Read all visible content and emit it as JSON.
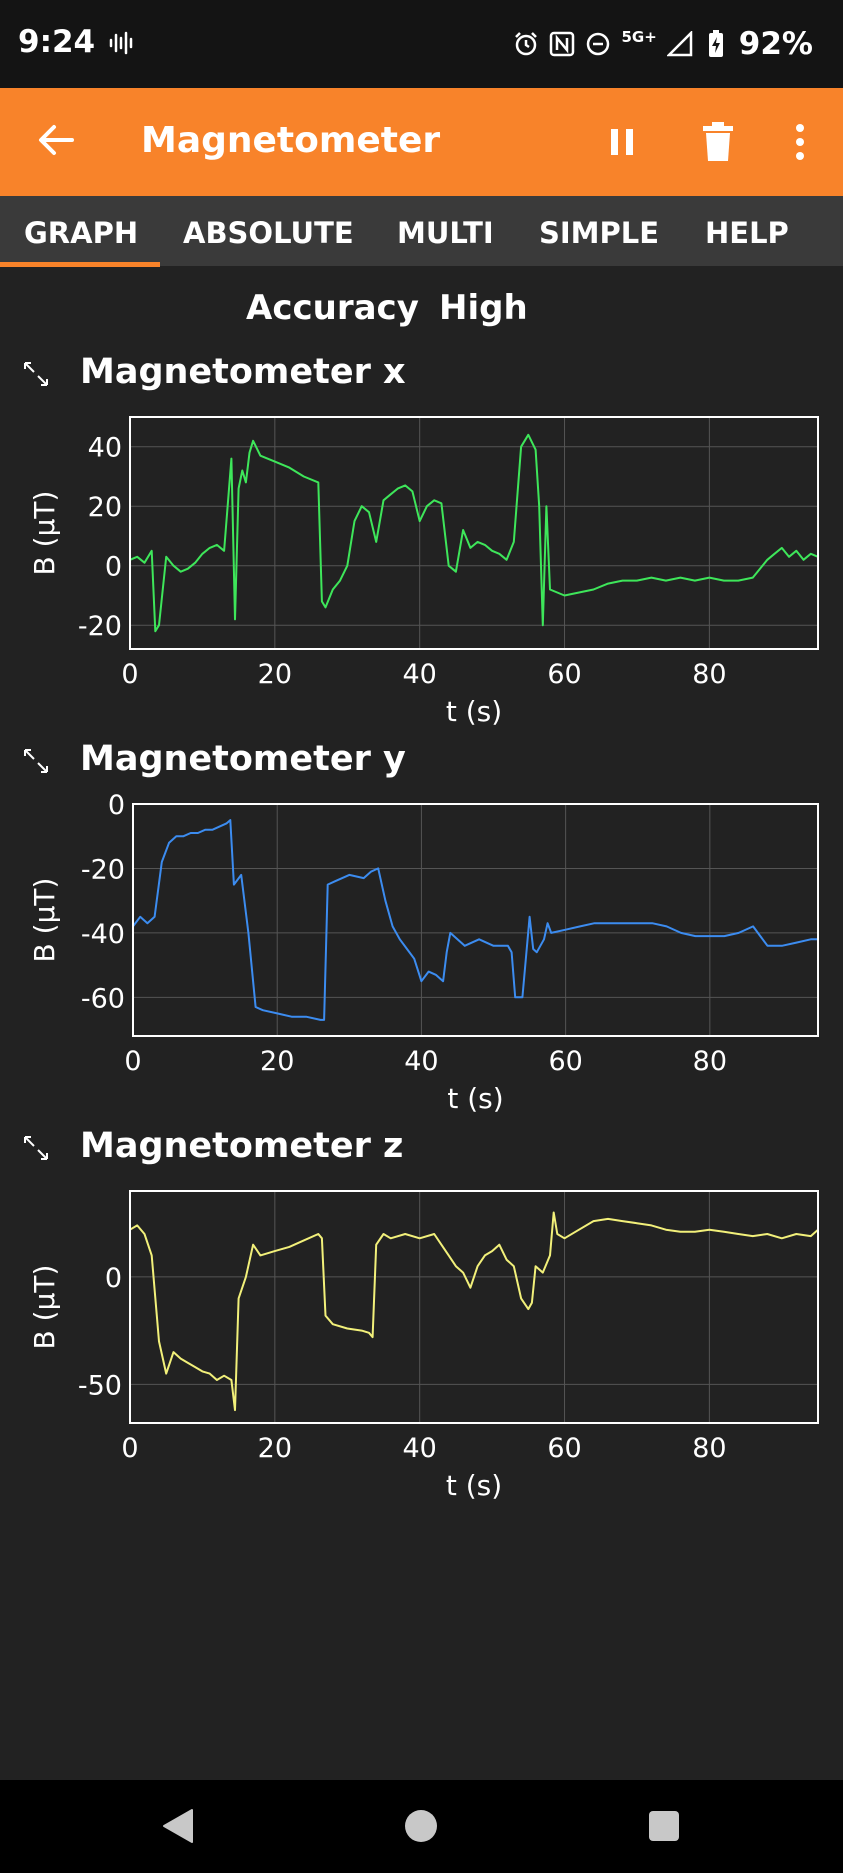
{
  "status_bar": {
    "time": "9:24",
    "network": "5G+",
    "battery": "92%",
    "icons": [
      "voicemail-wave-icon",
      "alarm-icon",
      "nfc-icon",
      "do-not-disturb-icon",
      "signal-icon",
      "battery-charging-icon"
    ]
  },
  "app_bar": {
    "title": "Magnetometer",
    "color": "#f8832a",
    "icons": [
      "back-arrow-icon",
      "pause-icon",
      "delete-icon",
      "more-vert-icon"
    ]
  },
  "tabs": [
    {
      "label": "GRAPH",
      "active": true
    },
    {
      "label": "ABSOLUTE",
      "active": false
    },
    {
      "label": "MULTI",
      "active": false
    },
    {
      "label": "SIMPLE",
      "active": false
    },
    {
      "label": "HELP",
      "active": false
    }
  ],
  "accuracy": {
    "label": "Accuracy",
    "value": "High"
  },
  "graphs": [
    {
      "title": "Magnetometer x"
    },
    {
      "title": "Magnetometer y"
    },
    {
      "title": "Magnetometer z"
    }
  ],
  "chart_data": [
    {
      "type": "line",
      "title": "Magnetometer x",
      "xlabel": "t (s)",
      "ylabel": "B (µT)",
      "xlim": [
        0,
        95
      ],
      "ylim": [
        -28,
        50
      ],
      "xticks": [
        0,
        20,
        40,
        60,
        80
      ],
      "yticks": [
        -20,
        0,
        20,
        40
      ],
      "grid": true,
      "color": "#3ee65a",
      "series": [
        {
          "x": [
            0,
            1,
            2,
            3,
            3.5,
            4,
            5,
            6,
            7,
            8,
            9,
            10,
            11,
            12,
            13,
            14,
            14.5,
            15,
            15.5,
            16,
            16.5,
            17,
            18,
            20,
            22,
            24,
            26,
            26.5,
            27,
            28,
            29,
            30,
            31,
            32,
            33,
            34,
            35,
            36,
            37,
            38,
            39,
            40,
            41,
            42,
            43,
            44,
            45,
            46,
            47,
            48,
            49,
            50,
            51,
            52,
            53,
            54,
            55,
            56,
            56.5,
            57,
            57.5,
            58,
            60,
            62,
            64,
            66,
            68,
            70,
            72,
            74,
            76,
            78,
            80,
            82,
            84,
            86,
            88,
            89,
            90,
            91,
            92,
            93,
            94,
            95
          ],
          "y": [
            2,
            3,
            1,
            5,
            -22,
            -20,
            3,
            0,
            -2,
            -1,
            1,
            4,
            6,
            7,
            5,
            36,
            -18,
            26,
            32,
            28,
            38,
            42,
            37,
            35,
            33,
            30,
            28,
            -12,
            -14,
            -8,
            -5,
            0,
            15,
            20,
            18,
            8,
            22,
            24,
            26,
            27,
            25,
            15,
            20,
            22,
            21,
            0,
            -2,
            12,
            6,
            8,
            7,
            5,
            4,
            2,
            8,
            40,
            44,
            39,
            20,
            -20,
            20,
            -8,
            -10,
            -9,
            -8,
            -6,
            -5,
            -5,
            -4,
            -5,
            -4,
            -5,
            -4,
            -5,
            -5,
            -4,
            2,
            4,
            6,
            3,
            5,
            2,
            4,
            3
          ],
          "note_removed": null
        }
      ]
    },
    {
      "type": "line",
      "title": "Magnetometer y",
      "xlabel": "t (s)",
      "ylabel": "B (µT)",
      "xlim": [
        0,
        95
      ],
      "ylim": [
        -72,
        0
      ],
      "xticks": [
        0,
        20,
        40,
        60,
        80
      ],
      "yticks": [
        -60,
        -40,
        -20,
        0
      ],
      "grid": true,
      "color": "#3c8cf0",
      "series": [
        {
          "x": [
            0,
            1,
            2,
            3,
            4,
            5,
            6,
            7,
            8,
            9,
            10,
            11,
            12,
            13,
            13.5,
            14,
            15,
            16,
            17,
            18,
            20,
            22,
            24,
            26,
            26.5,
            27,
            28,
            30,
            32,
            33,
            34,
            35,
            36,
            37,
            38,
            39,
            40,
            41,
            42,
            43,
            43.5,
            44,
            46,
            48,
            50,
            52,
            52.5,
            53,
            54,
            55,
            55.5,
            56,
            57,
            57.5,
            58,
            60,
            62,
            64,
            66,
            68,
            70,
            72,
            74,
            76,
            78,
            80,
            82,
            84,
            86,
            87,
            88,
            90,
            92,
            94,
            95
          ],
          "y": [
            -38,
            -35,
            -37,
            -35,
            -18,
            -12,
            -10,
            -10,
            -9,
            -9,
            -8,
            -8,
            -7,
            -6,
            -5,
            -25,
            -22,
            -40,
            -63,
            -64,
            -65,
            -66,
            -66,
            -67,
            -67,
            -25,
            -24,
            -22,
            -23,
            -21,
            -20,
            -30,
            -38,
            -42,
            -45,
            -48,
            -55,
            -52,
            -53,
            -55,
            -46,
            -40,
            -44,
            -42,
            -44,
            -44,
            -46,
            -60,
            -60,
            -35,
            -45,
            -46,
            -42,
            -37,
            -40,
            -39,
            -38,
            -37,
            -37,
            -37,
            -37,
            -37,
            -38,
            -40,
            -41,
            -41,
            -41,
            -40,
            -38,
            -41,
            -44,
            -44,
            -43,
            -42,
            -42
          ]
        }
      ]
    },
    {
      "type": "line",
      "title": "Magnetometer z",
      "xlabel": "t (s)",
      "ylabel": "B (µT)",
      "xlim": [
        0,
        95
      ],
      "ylim": [
        -68,
        40
      ],
      "xticks": [
        0,
        20,
        40,
        60,
        80
      ],
      "yticks": [
        -50,
        0
      ],
      "grid": true,
      "color": "#f2f07a",
      "series": [
        {
          "x": [
            0,
            1,
            2,
            3,
            4,
            5,
            6,
            7,
            8,
            9,
            10,
            11,
            12,
            13,
            14,
            14.5,
            15,
            16,
            17,
            18,
            20,
            22,
            24,
            26,
            26.5,
            27,
            28,
            30,
            32,
            33,
            33.5,
            34,
            35,
            36,
            38,
            40,
            42,
            43,
            44,
            45,
            46,
            47,
            48,
            49,
            50,
            51,
            52,
            53,
            54,
            55,
            55.5,
            56,
            57,
            58,
            58.5,
            59,
            60,
            62,
            64,
            66,
            68,
            70,
            72,
            74,
            76,
            78,
            80,
            82,
            84,
            86,
            88,
            90,
            92,
            94,
            95
          ],
          "y": [
            22,
            24,
            20,
            10,
            -30,
            -45,
            -35,
            -38,
            -40,
            -42,
            -44,
            -45,
            -48,
            -46,
            -48,
            -62,
            -10,
            0,
            15,
            10,
            12,
            14,
            17,
            20,
            18,
            -18,
            -22,
            -24,
            -25,
            -26,
            -28,
            15,
            20,
            18,
            20,
            18,
            20,
            15,
            10,
            5,
            2,
            -5,
            5,
            10,
            12,
            15,
            8,
            5,
            -10,
            -15,
            -12,
            5,
            2,
            10,
            30,
            20,
            18,
            22,
            26,
            27,
            26,
            25,
            24,
            22,
            21,
            21,
            22,
            21,
            20,
            19,
            20,
            18,
            20,
            19,
            22
          ]
        }
      ]
    }
  ],
  "nav_bar": {
    "icons": [
      "back-triangle-icon",
      "home-circle-icon",
      "recents-square-icon"
    ]
  }
}
